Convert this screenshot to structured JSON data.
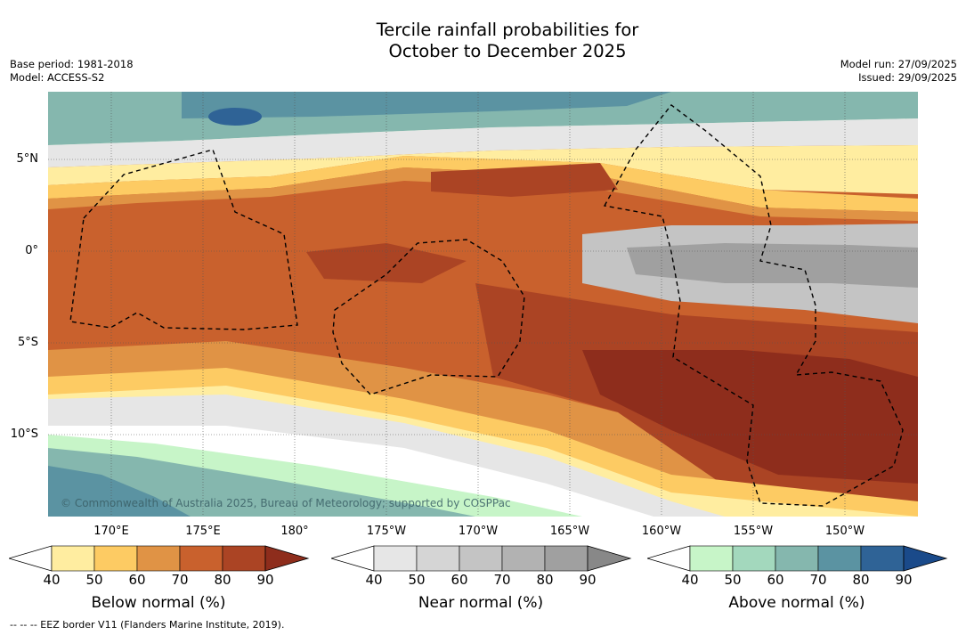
{
  "title": {
    "line1": "Tercile rainfall probabilities for",
    "line2": "October to December 2025"
  },
  "meta_left": {
    "base_period": "Base period: 1981-2018",
    "model": "Model: ACCESS-S2"
  },
  "meta_right": {
    "model_run": "Model run: 27/09/2025",
    "issued": "Issued: 29/09/2025"
  },
  "map": {
    "lat_labels": [
      "5°N",
      "0°",
      "5°S",
      "10°S"
    ],
    "lon_labels": [
      "170°E",
      "175°E",
      "180°",
      "175°W",
      "170°W",
      "165°W",
      "160°W",
      "155°W",
      "150°W"
    ],
    "copyright": "© Commonwealth of Australia 2025, Bureau of Meteorology; supported by COSPPac",
    "region": "Central tropical Pacific",
    "dominant_signal": "Below normal"
  },
  "colorbars": [
    {
      "label": "Below normal (%)",
      "ticks": [
        "40",
        "50",
        "60",
        "70",
        "80",
        "90"
      ],
      "colors": [
        "#ffeda0",
        "#fdcb63",
        "#e09345",
        "#c9612d",
        "#ab4424",
        "#8e2d1c"
      ]
    },
    {
      "label": "Near normal (%)",
      "ticks": [
        "40",
        "50",
        "60",
        "70",
        "80",
        "90"
      ],
      "colors": [
        "#e6e6e6",
        "#d5d5d5",
        "#c4c4c4",
        "#b2b2b2",
        "#a0a0a0",
        "#888888"
      ]
    },
    {
      "label": "Above normal (%)",
      "ticks": [
        "40",
        "50",
        "60",
        "70",
        "80",
        "90"
      ],
      "colors": [
        "#c7f5c8",
        "#a3d8bd",
        "#85b7ae",
        "#5b93a2",
        "#2f6396",
        "#1a4a8a"
      ]
    }
  ],
  "footnote": "--  --  -- EEZ border V11 (Flanders Marine Institute, 2019)."
}
